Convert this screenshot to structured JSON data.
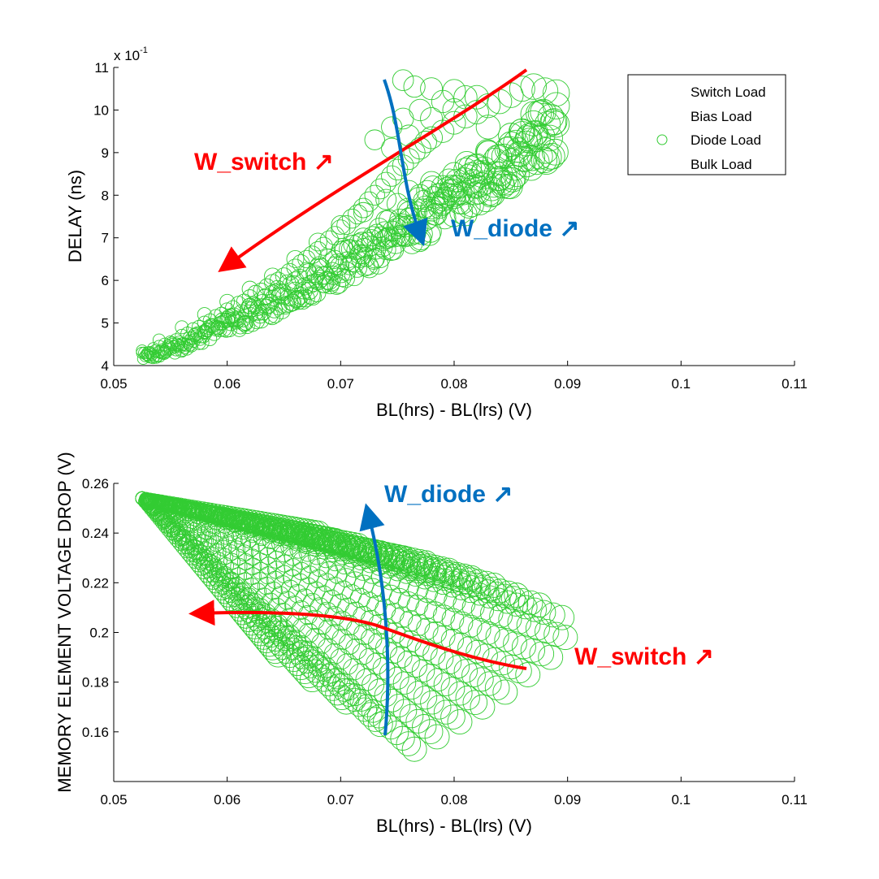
{
  "chart_data": [
    {
      "type": "scatter",
      "xlabel": "BL(hrs) - BL(lrs) (V)",
      "ylabel": "DELAY (ns)",
      "y_multiplier_base": "x 10",
      "y_multiplier_exp": "-1",
      "xlim": [
        0.05,
        0.11
      ],
      "ylim": [
        4,
        11
      ],
      "xticks": [
        0.05,
        0.06,
        0.07,
        0.08,
        0.09,
        0.1,
        0.11
      ],
      "xtick_labels": [
        "0.05",
        "0.06",
        "0.07",
        "0.08",
        "0.09",
        "0.1",
        "0.11"
      ],
      "yticks": [
        4,
        5,
        6,
        7,
        8,
        9,
        10,
        11
      ],
      "ytick_labels": [
        "4",
        "5",
        "6",
        "7",
        "8",
        "9",
        "10",
        "11"
      ],
      "grid": false,
      "legend": {
        "position": "top-right",
        "entries": [
          {
            "label": "Switch Load",
            "marker": "none"
          },
          {
            "label": "Bias Load",
            "marker": "none"
          },
          {
            "label": "Diode Load",
            "marker": "circle"
          },
          {
            "label": "Bulk Load",
            "marker": "none"
          }
        ]
      },
      "series": [
        {
          "name": "Diode Load",
          "color": "#33cc33",
          "marker": "circle-open",
          "points": [
            [
              0.0525,
              4.35
            ],
            [
              0.053,
              4.3
            ],
            [
              0.0535,
              4.4
            ],
            [
              0.054,
              4.45
            ],
            [
              0.0545,
              4.5
            ],
            [
              0.055,
              4.55
            ],
            [
              0.0555,
              4.6
            ],
            [
              0.056,
              4.7
            ],
            [
              0.0565,
              4.75
            ],
            [
              0.057,
              4.85
            ],
            [
              0.0575,
              4.9
            ],
            [
              0.058,
              5.0
            ],
            [
              0.0585,
              5.05
            ],
            [
              0.059,
              5.15
            ],
            [
              0.0595,
              5.2
            ],
            [
              0.06,
              5.3
            ],
            [
              0.0605,
              5.35
            ],
            [
              0.061,
              5.45
            ],
            [
              0.0615,
              5.5
            ],
            [
              0.062,
              5.6
            ],
            [
              0.0625,
              5.7
            ],
            [
              0.063,
              5.75
            ],
            [
              0.0635,
              5.85
            ],
            [
              0.064,
              5.95
            ],
            [
              0.0645,
              6.0
            ],
            [
              0.065,
              6.1
            ],
            [
              0.0655,
              6.2
            ],
            [
              0.066,
              6.3
            ],
            [
              0.0665,
              6.4
            ],
            [
              0.067,
              6.5
            ],
            [
              0.0675,
              6.6
            ],
            [
              0.068,
              6.7
            ],
            [
              0.0685,
              6.8
            ],
            [
              0.069,
              6.95
            ],
            [
              0.0695,
              7.05
            ],
            [
              0.07,
              7.2
            ],
            [
              0.0705,
              7.3
            ],
            [
              0.071,
              7.45
            ],
            [
              0.0715,
              7.55
            ],
            [
              0.072,
              7.7
            ],
            [
              0.0725,
              7.85
            ],
            [
              0.073,
              8.0
            ],
            [
              0.0735,
              8.15
            ],
            [
              0.074,
              8.3
            ],
            [
              0.0745,
              8.45
            ],
            [
              0.075,
              8.6
            ],
            [
              0.0755,
              8.7
            ],
            [
              0.076,
              8.85
            ],
            [
              0.0765,
              9.0
            ],
            [
              0.077,
              9.1
            ],
            [
              0.0775,
              9.25
            ],
            [
              0.078,
              9.35
            ],
            [
              0.079,
              9.5
            ],
            [
              0.08,
              9.7
            ],
            [
              0.081,
              9.85
            ],
            [
              0.082,
              9.95
            ],
            [
              0.083,
              10.1
            ],
            [
              0.084,
              10.2
            ],
            [
              0.085,
              10.35
            ],
            [
              0.086,
              10.5
            ],
            [
              0.087,
              10.55
            ],
            [
              0.088,
              10.45
            ],
            [
              0.089,
              10.4
            ],
            [
              0.0755,
              10.7
            ],
            [
              0.0765,
              10.55
            ],
            [
              0.078,
              10.5
            ],
            [
              0.08,
              10.45
            ],
            [
              0.082,
              10.3
            ],
            [
              0.0745,
              9.6
            ],
            [
              0.0755,
              9.8
            ],
            [
              0.077,
              10.0
            ],
            [
              0.079,
              10.2
            ],
            [
              0.081,
              10.3
            ],
            [
              0.073,
              9.3
            ],
            [
              0.0745,
              9.1
            ],
            [
              0.076,
              9.4
            ],
            [
              0.078,
              9.8
            ],
            [
              0.08,
              10.0
            ],
            [
              0.083,
              9.6
            ],
            [
              0.085,
              9.2
            ],
            [
              0.086,
              9.5
            ],
            [
              0.084,
              8.9
            ],
            [
              0.082,
              8.7
            ],
            [
              0.08,
              8.5
            ],
            [
              0.078,
              8.3
            ],
            [
              0.076,
              8.1
            ],
            [
              0.074,
              7.9
            ],
            [
              0.072,
              7.6
            ],
            [
              0.07,
              7.3
            ],
            [
              0.075,
              7.8
            ],
            [
              0.077,
              8.0
            ],
            [
              0.079,
              8.2
            ],
            [
              0.081,
              8.6
            ],
            [
              0.083,
              9.0
            ],
            [
              0.085,
              9.4
            ],
            [
              0.087,
              9.9
            ],
            [
              0.089,
              10.1
            ],
            [
              0.068,
              6.9
            ],
            [
              0.066,
              6.5
            ],
            [
              0.064,
              6.1
            ],
            [
              0.062,
              5.8
            ],
            [
              0.06,
              5.5
            ],
            [
              0.058,
              5.2
            ],
            [
              0.056,
              4.9
            ],
            [
              0.054,
              4.6
            ],
            [
              0.0532,
              4.2
            ],
            [
              0.0545,
              4.3
            ],
            [
              0.056,
              4.5
            ],
            [
              0.058,
              4.8
            ],
            [
              0.06,
              5.1
            ],
            [
              0.062,
              5.4
            ],
            [
              0.064,
              5.7
            ],
            [
              0.066,
              6.0
            ],
            [
              0.068,
              6.3
            ],
            [
              0.07,
              6.7
            ],
            [
              0.072,
              7.0
            ],
            [
              0.074,
              7.4
            ],
            [
              0.076,
              7.6
            ],
            [
              0.078,
              7.7
            ],
            [
              0.08,
              8.0
            ],
            [
              0.082,
              8.2
            ]
          ]
        }
      ],
      "annotations": [
        {
          "text": "W_switch ↗",
          "color": "#ff0000"
        },
        {
          "text": "W_diode ↗",
          "color": "#0070c0"
        }
      ]
    },
    {
      "type": "scatter",
      "xlabel": "BL(hrs) - BL(lrs) (V)",
      "ylabel": "MEMORY ELEMENT VOLTAGE DROP (V)",
      "xlim": [
        0.05,
        0.11
      ],
      "ylim": [
        0.14,
        0.26
      ],
      "xticks": [
        0.05,
        0.06,
        0.07,
        0.08,
        0.09,
        0.1,
        0.11
      ],
      "xtick_labels": [
        "0.05",
        "0.06",
        "0.07",
        "0.08",
        "0.09",
        "0.1",
        "0.11"
      ],
      "yticks": [
        0.16,
        0.18,
        0.2,
        0.22,
        0.24,
        0.26
      ],
      "ytick_labels": [
        "0.16",
        "0.18",
        "0.2",
        "0.22",
        "0.24",
        "0.26"
      ],
      "grid": false,
      "series": [
        {
          "name": "Diode Load",
          "color": "#33cc33",
          "marker": "circle-open",
          "fans": [
            {
              "start": [
                0.0525,
                0.254
              ],
              "end": [
                0.0895,
                0.206
              ]
            },
            {
              "start": [
                0.0525,
                0.254
              ],
              "end": [
                0.0875,
                0.211
              ]
            },
            {
              "start": [
                0.0525,
                0.254
              ],
              "end": [
                0.0855,
                0.215
              ]
            },
            {
              "start": [
                0.0525,
                0.254
              ],
              "end": [
                0.0835,
                0.219
              ]
            },
            {
              "start": [
                0.0525,
                0.254
              ],
              "end": [
                0.0815,
                0.222
              ]
            },
            {
              "start": [
                0.0525,
                0.254
              ],
              "end": [
                0.0795,
                0.225
              ]
            },
            {
              "start": [
                0.0525,
                0.254
              ],
              "end": [
                0.0775,
                0.228
              ]
            },
            {
              "start": [
                0.0525,
                0.254
              ],
              "end": [
                0.0755,
                0.23
              ]
            },
            {
              "start": [
                0.0525,
                0.254
              ],
              "end": [
                0.0735,
                0.232
              ]
            },
            {
              "start": [
                0.0525,
                0.254
              ],
              "end": [
                0.0715,
                0.235
              ]
            },
            {
              "start": [
                0.0525,
                0.254
              ],
              "end": [
                0.0695,
                0.237
              ]
            },
            {
              "start": [
                0.0525,
                0.254
              ],
              "end": [
                0.068,
                0.24
              ]
            },
            {
              "start": [
                0.0525,
                0.254
              ],
              "end": [
                0.0765,
                0.153
              ]
            },
            {
              "start": [
                0.0525,
                0.254
              ],
              "end": [
                0.0735,
                0.163
              ]
            },
            {
              "start": [
                0.0525,
                0.254
              ],
              "end": [
                0.0705,
                0.172
              ]
            },
            {
              "start": [
                0.0525,
                0.254
              ],
              "end": [
                0.0675,
                0.181
              ]
            },
            {
              "start": [
                0.0525,
                0.254
              ],
              "end": [
                0.0645,
                0.191
              ]
            },
            {
              "start": [
                0.0525,
                0.254
              ],
              "end": [
                0.0785,
                0.158
              ]
            },
            {
              "start": [
                0.0525,
                0.254
              ],
              "end": [
                0.0805,
                0.164
              ]
            },
            {
              "start": [
                0.0525,
                0.254
              ],
              "end": [
                0.0825,
                0.17
              ]
            },
            {
              "start": [
                0.0525,
                0.254
              ],
              "end": [
                0.0845,
                0.176
              ]
            },
            {
              "start": [
                0.0525,
                0.254
              ],
              "end": [
                0.0865,
                0.183
              ]
            },
            {
              "start": [
                0.0525,
                0.254
              ],
              "end": [
                0.0885,
                0.19
              ]
            },
            {
              "start": [
                0.0525,
                0.254
              ],
              "end": [
                0.0898,
                0.198
              ]
            }
          ]
        }
      ],
      "annotations": [
        {
          "text": "W_diode ↗",
          "color": "#0070c0"
        },
        {
          "text": "W_switch ↗",
          "color": "#ff0000"
        }
      ]
    }
  ]
}
